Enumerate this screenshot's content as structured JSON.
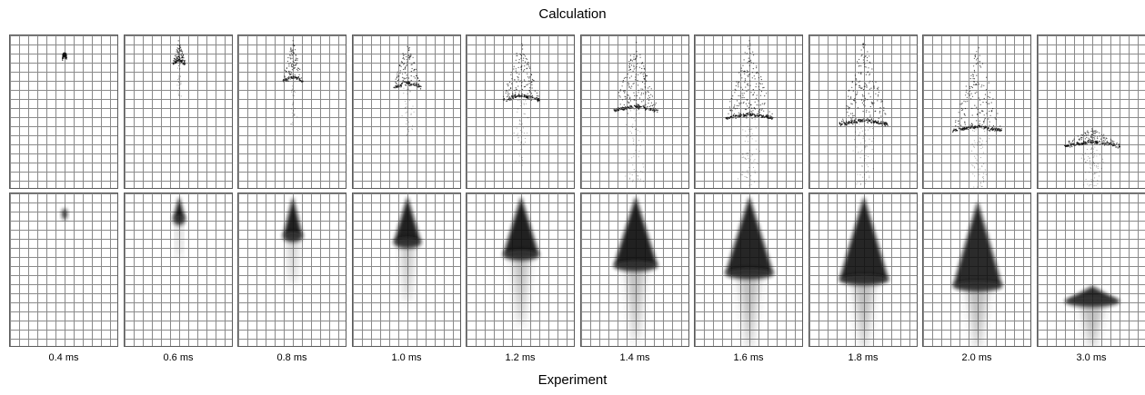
{
  "figure": {
    "top_title": "Calculation",
    "bottom_title": "Experiment",
    "frames": [
      {
        "time_label": "0.4 ms",
        "tip_depth": 0.11,
        "front_depth": 0.11,
        "half_width": 0.04,
        "tail_depth": 0.14,
        "calc_front_density": 0.9,
        "calc_cone_density": 0.9,
        "exp_cone_opacity": 0.95
      },
      {
        "time_label": "0.6 ms",
        "tip_depth": 0.02,
        "front_depth": 0.17,
        "half_width": 0.11,
        "tail_depth": 0.4,
        "calc_front_density": 0.9,
        "calc_cone_density": 0.85,
        "exp_cone_opacity": 0.95
      },
      {
        "time_label": "0.8 ms",
        "tip_depth": 0.02,
        "front_depth": 0.28,
        "half_width": 0.18,
        "tail_depth": 0.58,
        "calc_front_density": 0.8,
        "calc_cone_density": 0.75,
        "exp_cone_opacity": 0.92
      },
      {
        "time_label": "1.0 ms",
        "tip_depth": 0.02,
        "front_depth": 0.32,
        "half_width": 0.25,
        "tail_depth": 0.7,
        "calc_front_density": 0.85,
        "calc_cone_density": 0.6,
        "exp_cone_opacity": 0.92
      },
      {
        "time_label": "1.2 ms",
        "tip_depth": 0.02,
        "front_depth": 0.4,
        "half_width": 0.33,
        "tail_depth": 0.85,
        "calc_front_density": 0.9,
        "calc_cone_density": 0.55,
        "exp_cone_opacity": 0.92
      },
      {
        "time_label": "1.4 ms",
        "tip_depth": 0.02,
        "front_depth": 0.47,
        "half_width": 0.4,
        "tail_depth": 0.95,
        "calc_front_density": 0.9,
        "calc_cone_density": 0.55,
        "exp_cone_opacity": 0.92
      },
      {
        "time_label": "1.6 ms",
        "tip_depth": 0.02,
        "front_depth": 0.52,
        "half_width": 0.44,
        "tail_depth": 1.0,
        "calc_front_density": 0.95,
        "calc_cone_density": 0.55,
        "exp_cone_opacity": 0.9
      },
      {
        "time_label": "1.8 ms",
        "tip_depth": 0.02,
        "front_depth": 0.56,
        "half_width": 0.45,
        "tail_depth": 1.0,
        "calc_front_density": 0.95,
        "calc_cone_density": 0.55,
        "exp_cone_opacity": 0.9
      },
      {
        "time_label": "2.0 ms",
        "tip_depth": 0.05,
        "front_depth": 0.6,
        "half_width": 0.45,
        "tail_depth": 1.0,
        "calc_front_density": 0.95,
        "calc_cone_density": 0.45,
        "exp_cone_opacity": 0.88
      },
      {
        "time_label": "3.0 ms",
        "tip_depth": 0.6,
        "front_depth": 0.7,
        "half_width": 0.5,
        "tail_depth": 1.0,
        "calc_front_density": 0.85,
        "calc_cone_density": 0.3,
        "exp_cone_opacity": 0.85
      }
    ]
  }
}
